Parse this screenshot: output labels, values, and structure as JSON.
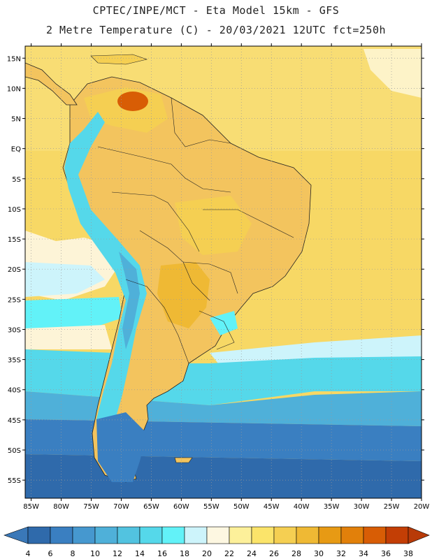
{
  "header": {
    "line1": "CPTEC/INPE/MCT -  Eta Model 15km - GFS",
    "line2": "2 Metre Temperature (C) - 20/03/2021 12UTC fct=250h"
  },
  "axes": {
    "lat_labels": [
      "15N",
      "10N",
      "5N",
      "EQ",
      "5S",
      "10S",
      "15S",
      "20S",
      "25S",
      "30S",
      "35S",
      "40S",
      "45S",
      "50S",
      "55S"
    ],
    "lat_values": [
      15,
      10,
      5,
      0,
      -5,
      -10,
      -15,
      -20,
      -25,
      -30,
      -35,
      -40,
      -45,
      -50,
      -55
    ],
    "lon_labels": [
      "85W",
      "80W",
      "75W",
      "70W",
      "65W",
      "60W",
      "55W",
      "50W",
      "45W",
      "40W",
      "35W",
      "30W",
      "25W",
      "20W"
    ],
    "lon_values": [
      -85,
      -80,
      -75,
      -70,
      -65,
      -60,
      -55,
      -50,
      -45,
      -40,
      -35,
      -30,
      -25,
      -20
    ],
    "lat_range": [
      -58,
      17
    ],
    "lon_range": [
      -86,
      -20
    ]
  },
  "colorbar": {
    "labels": [
      "4",
      "6",
      "8",
      "10",
      "12",
      "14",
      "16",
      "18",
      "20",
      "22",
      "24",
      "26",
      "28",
      "30",
      "32",
      "34",
      "36",
      "38"
    ],
    "low_color": "#3a78b8",
    "high_color": "#b83a08",
    "colors": [
      "#2f6aab",
      "#3a7fc1",
      "#4698cf",
      "#4fb0d9",
      "#52c3e0",
      "#55d8ea",
      "#62f2f8",
      "#cdf4fb",
      "#fdf7e1",
      "#fdf09a",
      "#fbe46a",
      "#f5cf52",
      "#efb934",
      "#e79a14",
      "#e2800a",
      "#d85d05",
      "#c33e05"
    ]
  },
  "map": {
    "ocean_color": "#f6d463",
    "land_color": "#f3c45e"
  }
}
